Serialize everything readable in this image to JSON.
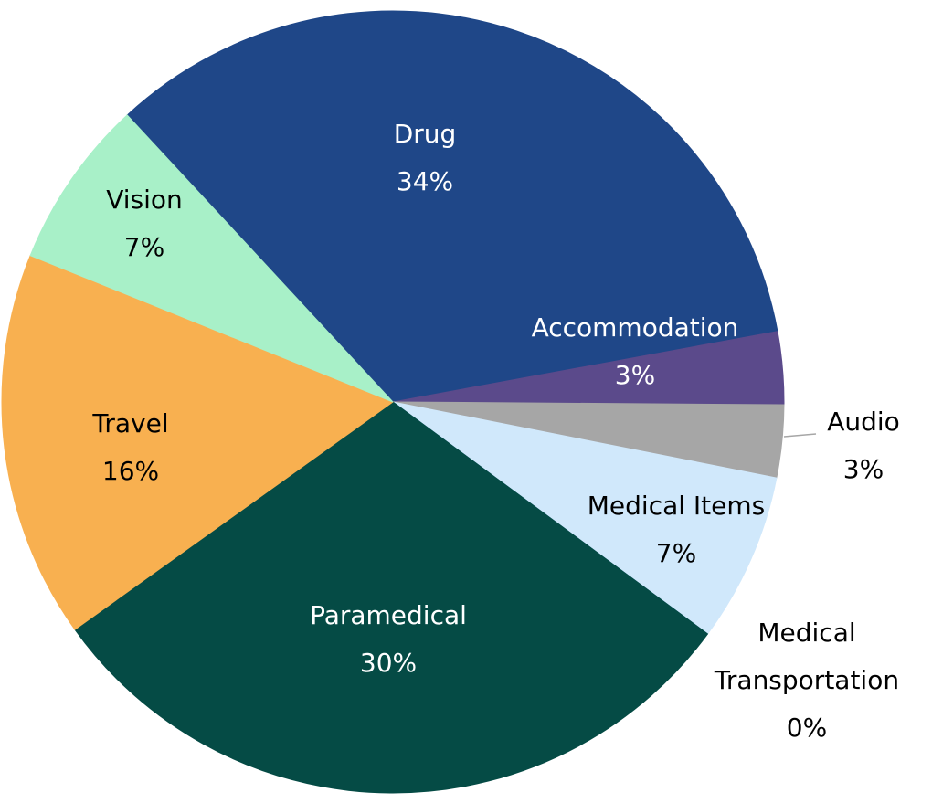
{
  "chart_data": {
    "type": "pie",
    "categories": [
      "Drug",
      "Accommodation",
      "Audio",
      "Medical Items",
      "Medical Transportation",
      "Paramedical",
      "Travel",
      "Vision"
    ],
    "values": [
      34,
      3,
      3,
      7,
      0,
      30,
      16,
      7
    ],
    "value_labels": [
      "34%",
      "3%",
      "3%",
      "7%",
      "0%",
      "30%",
      "16%",
      "7%"
    ],
    "colors": [
      "#1f4788",
      "#5b4a8b",
      "#a6a6a6",
      "#d0e8fb",
      "#1a5a80",
      "#054b45",
      "#f8b050",
      "#a8f0c8"
    ]
  }
}
